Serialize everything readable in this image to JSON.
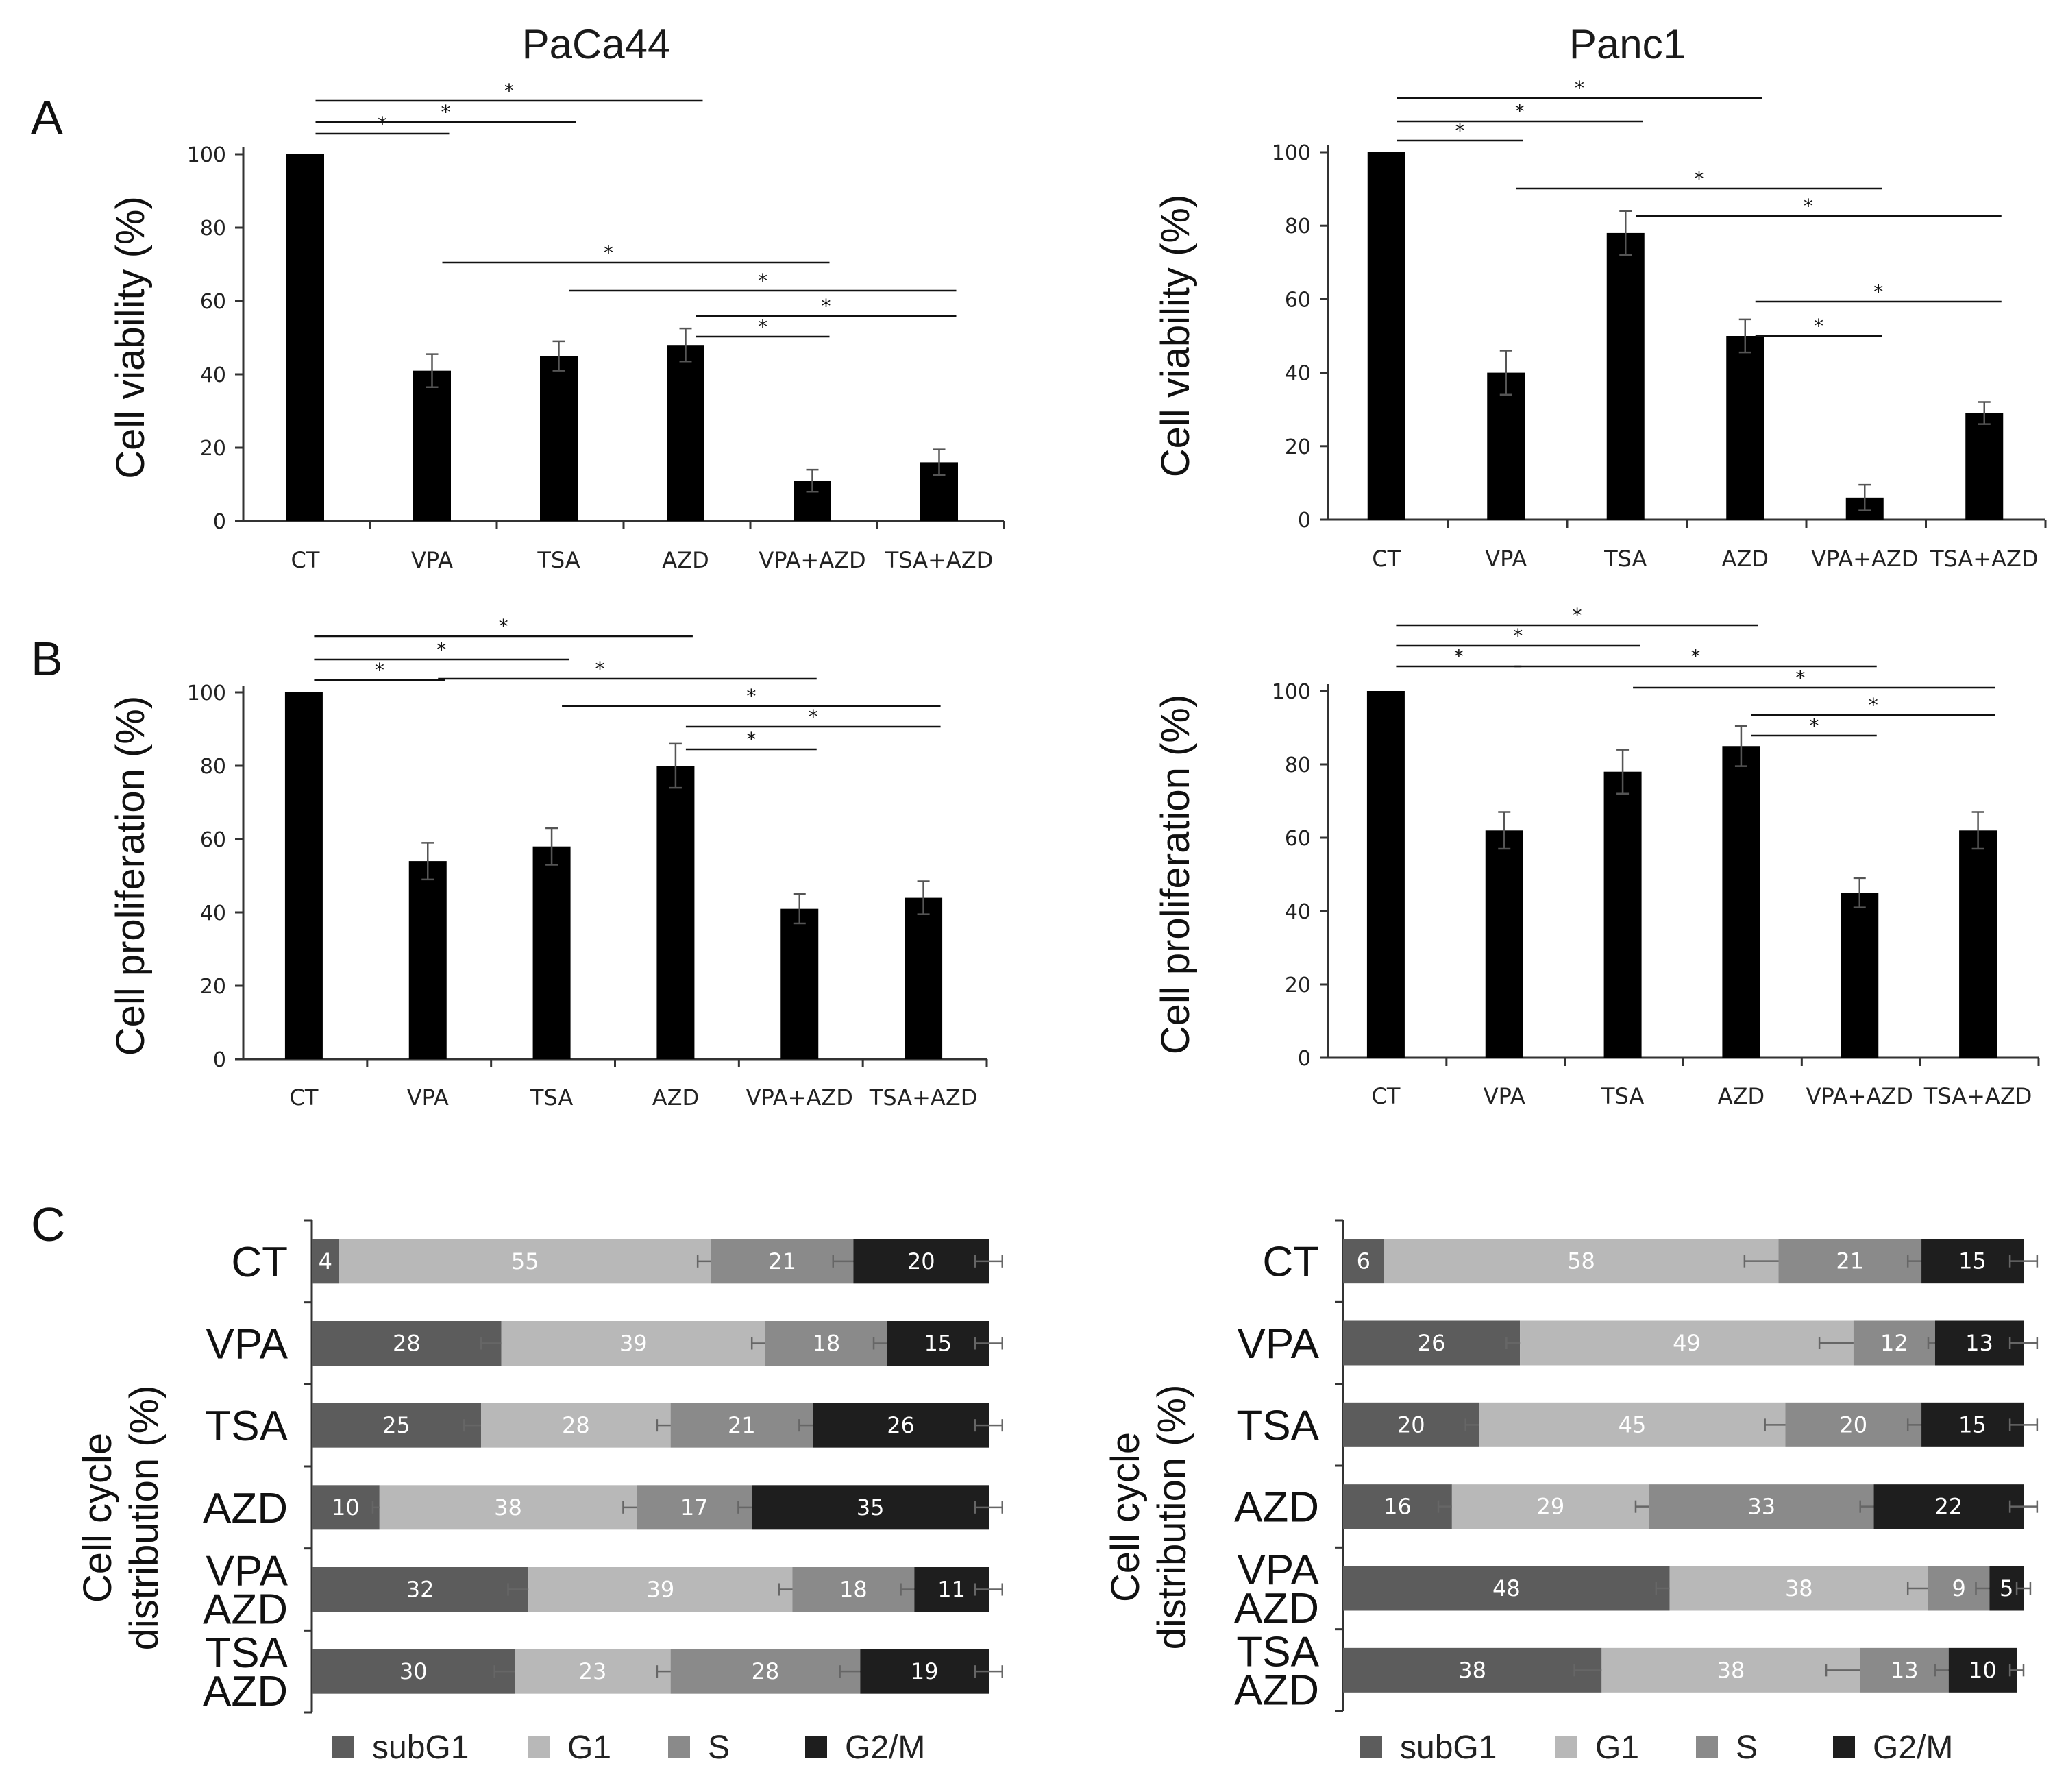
{
  "column_titles": [
    "PaCa44",
    "Panc1"
  ],
  "panel_letters": [
    "A",
    "B",
    "C"
  ],
  "chart_data": [
    {
      "id": "A_paca44",
      "type": "bar",
      "panel": "A",
      "column": "PaCa44",
      "ylabel": "Cell viability (%)",
      "ylim": [
        0,
        100
      ],
      "yticks": [
        0,
        20,
        40,
        60,
        80,
        100
      ],
      "categories": [
        "CT",
        "VPA",
        "TSA",
        "AZD",
        "VPA+AZD",
        "TSA+AZD"
      ],
      "values": [
        100,
        41,
        45,
        48,
        11,
        16
      ],
      "errors": [
        0,
        4.5,
        4,
        4.5,
        3,
        3.5
      ],
      "significance": [
        {
          "from": 0,
          "to": 1,
          "label": "*"
        },
        {
          "from": 0,
          "to": 2,
          "label": "*"
        },
        {
          "from": 0,
          "to": 3,
          "label": "*"
        },
        {
          "from": 1,
          "to": 4,
          "label": "*"
        },
        {
          "from": 2,
          "to": 5,
          "label": "*"
        },
        {
          "from": 3,
          "to": 5,
          "label": "*"
        },
        {
          "from": 3,
          "to": 4,
          "label": "*"
        }
      ]
    },
    {
      "id": "A_panc1",
      "type": "bar",
      "panel": "A",
      "column": "Panc1",
      "ylabel": "Cell viability (%)",
      "ylim": [
        0,
        100
      ],
      "yticks": [
        0,
        20,
        40,
        60,
        80,
        100
      ],
      "categories": [
        "CT",
        "VPA",
        "TSA",
        "AZD",
        "VPA+AZD",
        "TSA+AZD"
      ],
      "values": [
        100,
        40,
        78,
        50,
        6,
        29
      ],
      "errors": [
        0,
        6,
        6,
        4.5,
        3.5,
        3
      ],
      "significance": [
        {
          "from": 0,
          "to": 1,
          "label": "*"
        },
        {
          "from": 0,
          "to": 2,
          "label": "*"
        },
        {
          "from": 0,
          "to": 3,
          "label": "*"
        },
        {
          "from": 1,
          "to": 4,
          "label": "*"
        },
        {
          "from": 2,
          "to": 5,
          "label": "*"
        },
        {
          "from": 3,
          "to": 5,
          "label": "*"
        },
        {
          "from": 3,
          "to": 4,
          "label": "*"
        }
      ]
    },
    {
      "id": "B_paca44",
      "type": "bar",
      "panel": "B",
      "column": "PaCa44",
      "ylabel": "Cell proliferation (%)",
      "ylim": [
        0,
        100
      ],
      "yticks": [
        0,
        20,
        40,
        60,
        80,
        100
      ],
      "categories": [
        "CT",
        "VPA",
        "TSA",
        "AZD",
        "VPA+AZD",
        "TSA+AZD"
      ],
      "values": [
        100,
        54,
        58,
        80,
        41,
        44
      ],
      "errors": [
        0,
        5,
        5,
        6,
        4,
        4.5
      ],
      "significance": [
        {
          "from": 0,
          "to": 1,
          "label": "*"
        },
        {
          "from": 0,
          "to": 2,
          "label": "*"
        },
        {
          "from": 0,
          "to": 3,
          "label": "*"
        },
        {
          "from": 1,
          "to": 4,
          "label": "*"
        },
        {
          "from": 2,
          "to": 5,
          "label": "*"
        },
        {
          "from": 3,
          "to": 5,
          "label": "*"
        },
        {
          "from": 3,
          "to": 4,
          "label": "*"
        }
      ]
    },
    {
      "id": "B_panc1",
      "type": "bar",
      "panel": "B",
      "column": "Panc1",
      "ylabel": "Cell proliferation (%)",
      "ylim": [
        0,
        100
      ],
      "yticks": [
        0,
        20,
        40,
        60,
        80,
        100
      ],
      "categories": [
        "CT",
        "VPA",
        "TSA",
        "AZD",
        "VPA+AZD",
        "TSA+AZD"
      ],
      "values": [
        100,
        62,
        78,
        85,
        45,
        62
      ],
      "errors": [
        0,
        5,
        6,
        5.5,
        4,
        5
      ],
      "significance": [
        {
          "from": 0,
          "to": 1,
          "label": "*"
        },
        {
          "from": 0,
          "to": 2,
          "label": "*"
        },
        {
          "from": 0,
          "to": 3,
          "label": "*"
        },
        {
          "from": 1,
          "to": 4,
          "label": "*"
        },
        {
          "from": 2,
          "to": 5,
          "label": "*"
        },
        {
          "from": 3,
          "to": 5,
          "label": "*"
        },
        {
          "from": 3,
          "to": 4,
          "label": "*"
        }
      ]
    },
    {
      "id": "C_paca44",
      "type": "stacked_bar_horizontal",
      "panel": "C",
      "column": "PaCa44",
      "ylabel_lines": [
        "Cell cycle",
        "distribution (%)"
      ],
      "categories": [
        [
          "CT"
        ],
        [
          "VPA"
        ],
        [
          "TSA"
        ],
        [
          "AZD"
        ],
        [
          "VPA",
          "AZD"
        ],
        [
          "TSA",
          "AZD"
        ]
      ],
      "series": [
        {
          "name": "subG1",
          "color": "#5c5c5c",
          "values": [
            4,
            28,
            25,
            10,
            32,
            30
          ],
          "errors": [
            0,
            3,
            2.5,
            1,
            3,
            3
          ]
        },
        {
          "name": "G1",
          "color": "#b8b8b8",
          "values": [
            55,
            39,
            28,
            38,
            39,
            23
          ],
          "errors": [
            2,
            2,
            2,
            2,
            2,
            2
          ]
        },
        {
          "name": "S",
          "color": "#8a8a8a",
          "values": [
            21,
            18,
            21,
            17,
            18,
            28
          ],
          "errors": [
            3,
            2,
            2,
            2,
            2,
            3
          ]
        },
        {
          "name": "G2/M",
          "color": "#1e1e1e",
          "values": [
            20,
            15,
            26,
            35,
            11,
            19
          ],
          "errors": [
            2,
            2,
            2,
            2,
            2,
            2
          ]
        }
      ]
    },
    {
      "id": "C_panc1",
      "type": "stacked_bar_horizontal",
      "panel": "C",
      "column": "Panc1",
      "ylabel_lines": [
        "Cell cycle",
        "distribution (%)"
      ],
      "categories": [
        [
          "CT"
        ],
        [
          "VPA"
        ],
        [
          "TSA"
        ],
        [
          "AZD"
        ],
        [
          "VPA",
          "AZD"
        ],
        [
          "TSA",
          "AZD"
        ]
      ],
      "series": [
        {
          "name": "subG1",
          "color": "#5c5c5c",
          "values": [
            6,
            26,
            20,
            16,
            48,
            38
          ],
          "errors": [
            0,
            2,
            2,
            2,
            2,
            4
          ]
        },
        {
          "name": "G1",
          "color": "#b8b8b8",
          "values": [
            58,
            49,
            45,
            29,
            38,
            38
          ],
          "errors": [
            5,
            5,
            3,
            2,
            3,
            5
          ]
        },
        {
          "name": "S",
          "color": "#8a8a8a",
          "values": [
            21,
            12,
            20,
            33,
            9,
            13
          ],
          "errors": [
            2,
            1,
            2,
            2,
            2,
            2
          ]
        },
        {
          "name": "G2/M",
          "color": "#1e1e1e",
          "values": [
            15,
            13,
            15,
            22,
            5,
            10
          ],
          "errors": [
            2,
            2,
            2,
            2,
            1,
            1
          ]
        }
      ]
    }
  ]
}
